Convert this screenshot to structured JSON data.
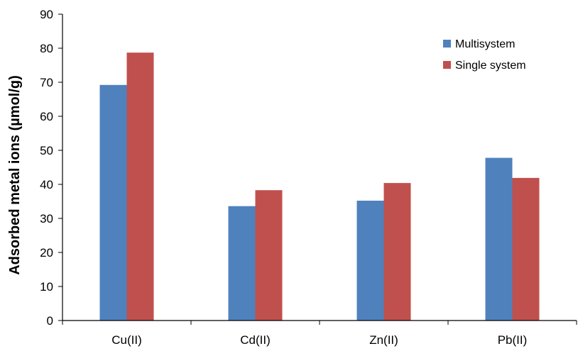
{
  "chart_data": {
    "type": "bar",
    "title": "",
    "xlabel": "",
    "ylabel": "Adsorbed metal ions (µmol/g)",
    "ylim": [
      0,
      90
    ],
    "yticks": [
      0,
      10,
      20,
      30,
      40,
      50,
      60,
      70,
      80,
      90
    ],
    "categories": [
      "Cu(II)",
      "Cd(II)",
      "Zn(II)",
      "Pb(II)"
    ],
    "series": [
      {
        "name": "Multisystem",
        "color": "#4f81bd",
        "values": [
          69.2,
          33.6,
          35.2,
          47.8
        ]
      },
      {
        "name": "Single system",
        "color": "#c0504d",
        "values": [
          78.7,
          38.3,
          40.4,
          41.9
        ]
      }
    ],
    "grid": false,
    "legend_position": "top-right"
  }
}
